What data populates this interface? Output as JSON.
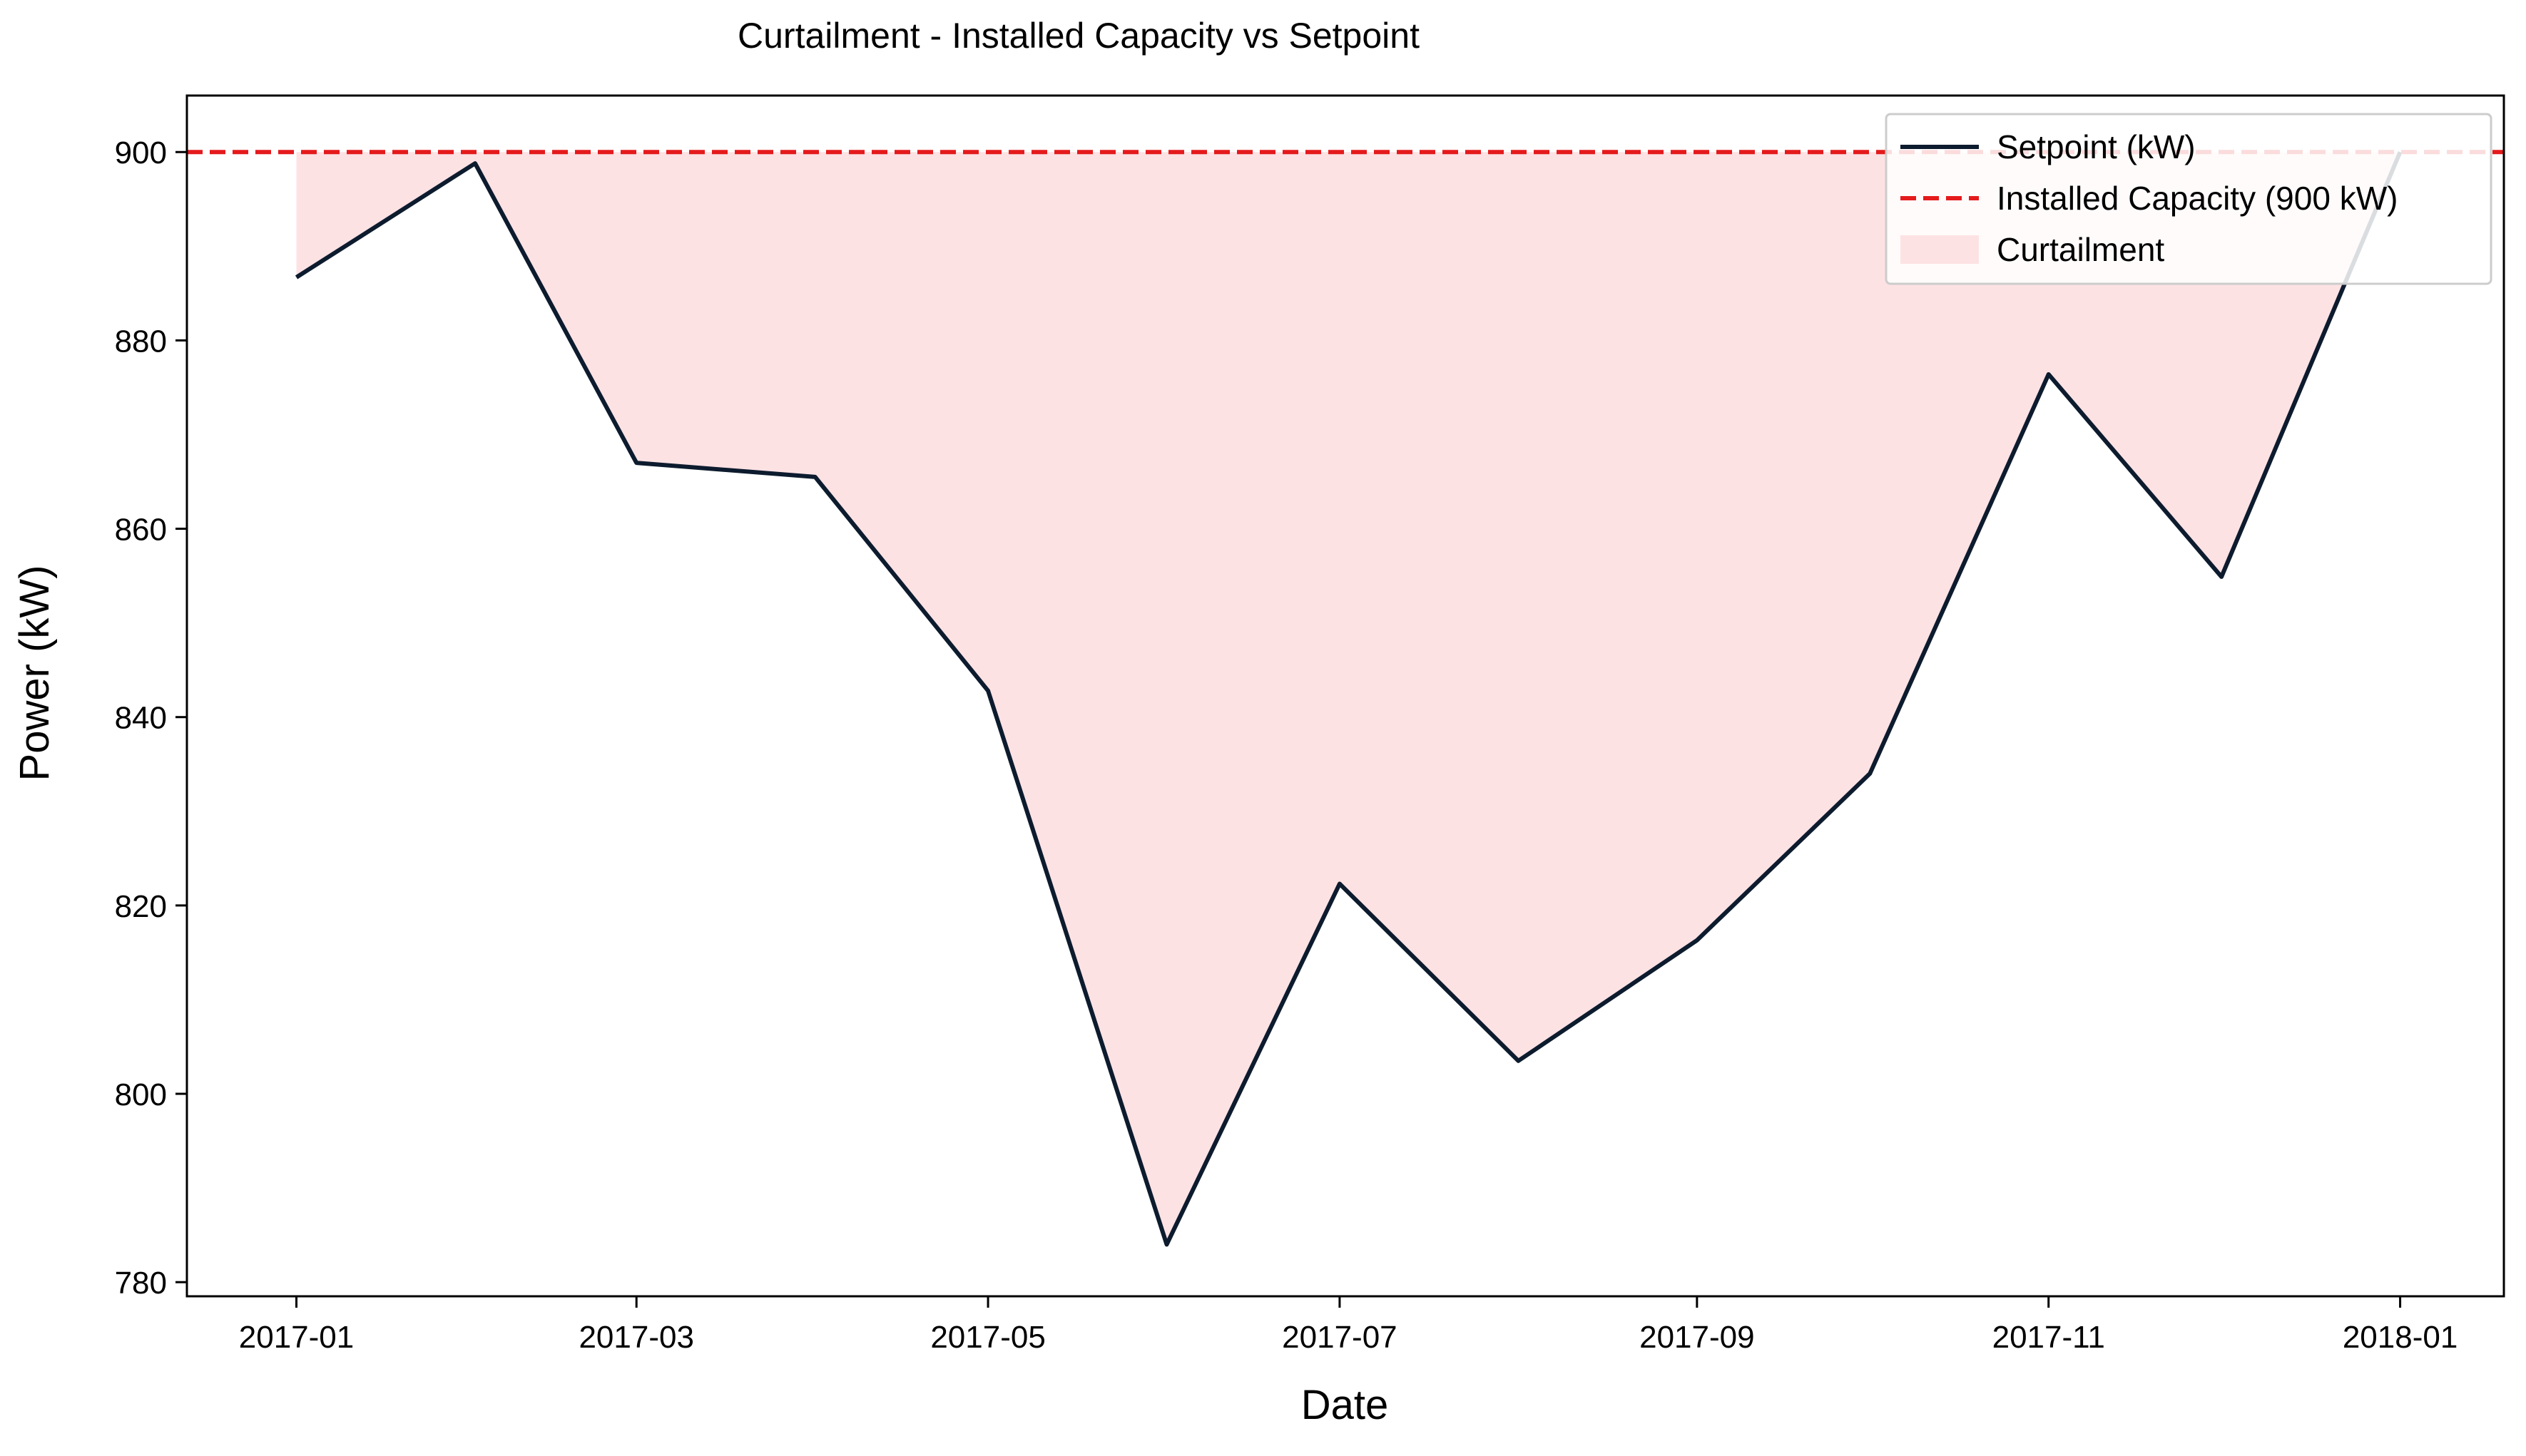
{
  "chart_data": {
    "type": "line",
    "title": "Curtailment - Installed Capacity vs Setpoint",
    "xlabel": "Date",
    "ylabel": "Power (kW)",
    "x_tick_labels": [
      "2017-01",
      "2017-03",
      "2017-05",
      "2017-07",
      "2017-09",
      "2017-11",
      "2018-01"
    ],
    "y_ticks": [
      780,
      800,
      820,
      840,
      860,
      880,
      900
    ],
    "ylim": [
      778.5,
      906
    ],
    "xlim": [
      "2016-12-13",
      "2018-01-19"
    ],
    "grid": false,
    "legend_position": "top-right",
    "x": [
      "2017-01-01",
      "2017-02-01",
      "2017-03-01",
      "2017-04-01",
      "2017-05-01",
      "2017-06-01",
      "2017-07-01",
      "2017-08-01",
      "2017-09-01",
      "2017-10-01",
      "2017-11-01",
      "2017-12-01",
      "2018-01-01"
    ],
    "series": [
      {
        "name": "Setpoint (kW)",
        "style": "solid",
        "color": "#0d1b2e",
        "values": [
          886.7,
          898.8,
          867.0,
          865.5,
          842.8,
          784.0,
          822.3,
          803.5,
          816.3,
          834.0,
          876.4,
          854.9,
          900.0
        ]
      },
      {
        "name": "Installed Capacity (900 kW)",
        "style": "dashed",
        "color": "#e41a1c",
        "value": 900
      }
    ],
    "fill": {
      "name": "Curtailment",
      "color": "#fde2e4"
    }
  }
}
